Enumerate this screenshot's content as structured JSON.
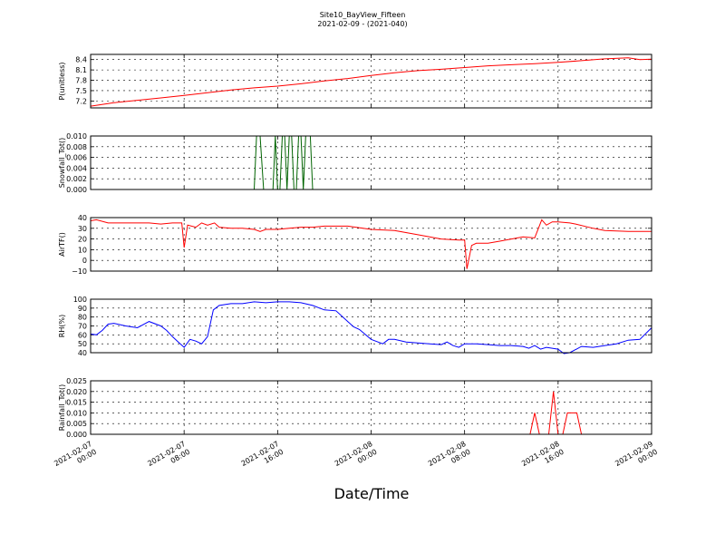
{
  "header": {
    "title": "Site10_BayView_Fifteen",
    "subtitle": "2021-02-09 - (2021-040)"
  },
  "chart_data": {
    "type": "line",
    "xlabel": "Date/Time",
    "x_range_hours": [
      0,
      48
    ],
    "x_tick_hours": [
      0,
      8,
      16,
      24,
      32,
      40,
      48
    ],
    "x_ticks": [
      [
        "2021-02-07",
        "00:00"
      ],
      [
        "2021-02-07",
        "08:00"
      ],
      [
        "2021-02-07",
        "16:00"
      ],
      [
        "2021-02-08",
        "00:00"
      ],
      [
        "2021-02-08",
        "08:00"
      ],
      [
        "2021-02-08",
        "16:00"
      ],
      [
        "2021-02-09",
        "00:00"
      ]
    ],
    "grid": true,
    "panels": [
      {
        "ylabel": "P(unitless)",
        "color": "#ff0000",
        "ylim": [
          7.0,
          8.55
        ],
        "yticks": [
          7.2,
          7.5,
          7.8,
          8.1,
          8.4
        ],
        "ytick_labels": [
          "7.2",
          "7.5",
          "7.8",
          "8.1",
          "8.4"
        ],
        "series": [
          {
            "x": [
              0,
              2,
              4,
              6,
              8,
              10,
              12,
              14,
              16,
              18,
              20,
              22,
              24,
              26,
              28,
              30,
              32,
              34,
              36,
              38,
              40,
              42,
              44,
              46,
              47,
              48
            ],
            "values": [
              7.05,
              7.15,
              7.22,
              7.29,
              7.36,
              7.44,
              7.52,
              7.58,
              7.63,
              7.7,
              7.78,
              7.85,
              7.94,
              8.02,
              8.08,
              8.12,
              8.17,
              8.22,
              8.25,
              8.28,
              8.32,
              8.37,
              8.42,
              8.45,
              8.4,
              8.41
            ]
          }
        ]
      },
      {
        "ylabel": "Snowfall_Tot()",
        "color": "#006400",
        "ylim": [
          0.0,
          0.01
        ],
        "yticks": [
          0.0,
          0.002,
          0.004,
          0.006,
          0.008,
          0.01
        ],
        "ytick_labels": [
          "0.000",
          "0.002",
          "0.004",
          "0.006",
          "0.008",
          "0.010"
        ],
        "series": [
          {
            "x": [
              0,
              14.0,
              14.2,
              14.5,
              14.8,
              15.6,
              15.8,
              16.0,
              16.2,
              16.4,
              16.6,
              16.8,
              17.0,
              17.2,
              17.4,
              17.6,
              17.8,
              18.0,
              18.2,
              18.4,
              18.6,
              18.8,
              19.0,
              19.2,
              48
            ],
            "values": [
              0,
              0,
              0.01,
              0.01,
              0,
              0,
              0.01,
              0,
              0,
              0.01,
              0.01,
              0,
              0.01,
              0.01,
              0,
              0,
              0.01,
              0.01,
              0,
              0.01,
              0.01,
              0.01,
              0,
              0,
              0
            ]
          }
        ]
      },
      {
        "ylabel": "AirTF()",
        "color": "#ff0000",
        "ylim": [
          -10,
          40
        ],
        "yticks": [
          -10,
          0,
          10,
          20,
          30,
          40
        ],
        "ytick_labels": [
          "−10",
          "0",
          "10",
          "20",
          "30",
          "40"
        ],
        "series": [
          {
            "x": [
              0,
              0.5,
              1.5,
              3,
              5,
              6,
              7,
              7.8,
              8.0,
              8.3,
              9.0,
              9.5,
              10,
              10.6,
              11,
              12,
              13,
              14,
              14.5,
              15,
              16,
              17,
              18,
              19,
              20,
              22,
              24,
              26,
              28,
              30,
              31.5,
              32,
              32.2,
              32.6,
              33,
              34,
              35,
              36,
              37,
              38,
              38.6,
              39,
              39.5,
              40,
              41,
              41.5,
              43,
              44,
              46,
              47,
              48
            ],
            "values": [
              37,
              38,
              35,
              35,
              35,
              34,
              35,
              35,
              12,
              33,
              31,
              35,
              33,
              35,
              31,
              30,
              30,
              29,
              27,
              29,
              29,
              30,
              31,
              31,
              32,
              32,
              29,
              28,
              24,
              20,
              19,
              19,
              -8,
              14,
              16,
              16,
              18,
              20,
              22,
              21,
              38,
              33,
              36,
              36,
              35,
              34,
              30,
              28,
              27,
              27,
              27
            ]
          }
        ]
      },
      {
        "ylabel": "RH(%)",
        "color": "#0000ff",
        "ylim": [
          40,
          100
        ],
        "yticks": [
          40,
          50,
          60,
          70,
          80,
          90,
          100
        ],
        "ytick_labels": [
          "40",
          "50",
          "60",
          "70",
          "80",
          "90",
          "100"
        ],
        "series": [
          {
            "x": [
              0,
              0.5,
              1,
              1.5,
              2,
              3,
              4,
              5,
              6,
              6.5,
              7,
              7.5,
              8.0,
              8.5,
              9.0,
              9.5,
              10,
              10.5,
              11,
              12,
              13,
              14,
              15,
              16,
              17,
              18,
              19,
              20,
              21,
              22,
              22.5,
              23,
              24,
              25,
              25.5,
              26,
              27,
              28,
              29,
              30,
              30.5,
              31,
              31.5,
              32,
              33,
              34,
              35,
              36,
              37,
              37.5,
              38,
              38.5,
              39,
              40,
              40.5,
              41,
              42,
              43,
              44,
              45,
              46,
              47,
              48
            ],
            "values": [
              61,
              60,
              65,
              72,
              73,
              70,
              68,
              75,
              70,
              65,
              58,
              52,
              46,
              55,
              53,
              50,
              58,
              88,
              93,
              95,
              95,
              97,
              96,
              97,
              97,
              96,
              93,
              88,
              87,
              75,
              69,
              66,
              55,
              50,
              55,
              55,
              52,
              51,
              50,
              49,
              52,
              48,
              46,
              50,
              50,
              49,
              48,
              48,
              47,
              45,
              48,
              44,
              46,
              44,
              39,
              40,
              47,
              46,
              48,
              50,
              54,
              55,
              68
            ]
          }
        ]
      },
      {
        "ylabel": "Rainfall_Tot()",
        "color": "#ff0000",
        "ylim": [
          0.0,
          0.025
        ],
        "yticks": [
          0.0,
          0.005,
          0.01,
          0.015,
          0.02,
          0.025
        ],
        "ytick_labels": [
          "0.000",
          "0.005",
          "0.010",
          "0.015",
          "0.020",
          "0.025"
        ],
        "series": [
          {
            "x": [
              0,
              37.6,
              38.0,
              38.4,
              38.8,
              39.2,
              39.6,
              40.0,
              40.4,
              40.8,
              41.2,
              41.6,
              42.0,
              48
            ],
            "values": [
              0,
              0,
              0.01,
              0,
              0,
              0,
              0.02,
              0,
              0,
              0.01,
              0.01,
              0.01,
              0,
              0
            ]
          }
        ]
      }
    ]
  }
}
